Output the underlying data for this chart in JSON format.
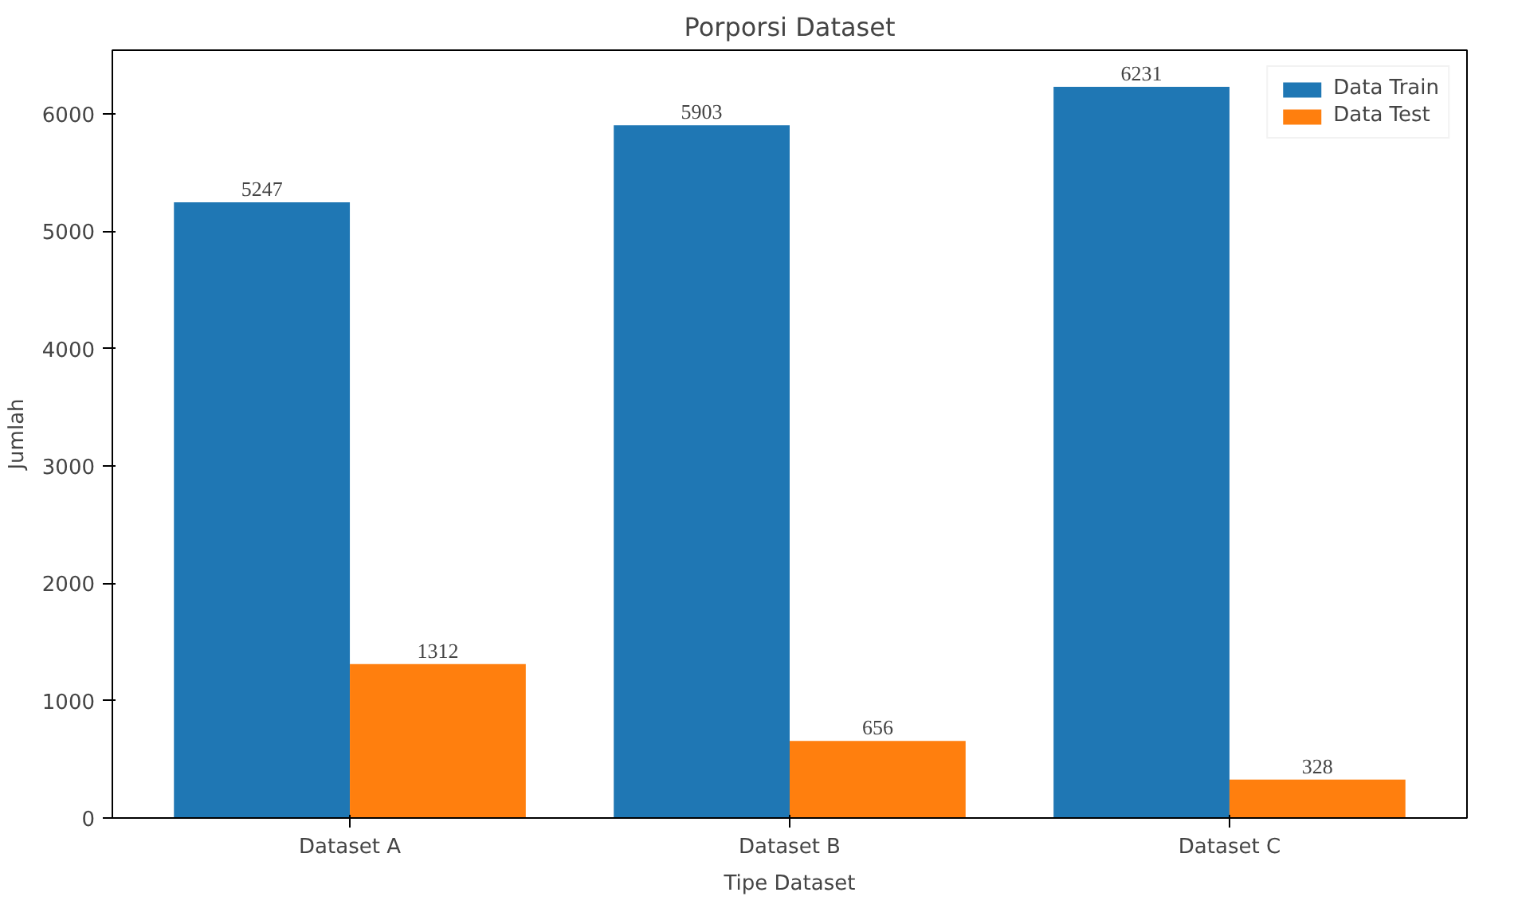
{
  "chart_data": {
    "type": "bar",
    "title": "Porporsi Dataset",
    "xlabel": "Tipe Dataset",
    "ylabel": "Jumlah",
    "categories": [
      "Dataset A",
      "Dataset B",
      "Dataset C"
    ],
    "series": [
      {
        "name": "Data Train",
        "color": "#1f77b4",
        "values": [
          5247,
          5903,
          6231
        ]
      },
      {
        "name": "Data Test",
        "color": "#ff7f0e",
        "values": [
          1312,
          656,
          328
        ]
      }
    ],
    "ylim": [
      0,
      6543
    ],
    "yticks": [
      0,
      1000,
      2000,
      3000,
      4000,
      5000,
      6000
    ],
    "grid": false,
    "legend": "top right",
    "data_labels": true
  }
}
